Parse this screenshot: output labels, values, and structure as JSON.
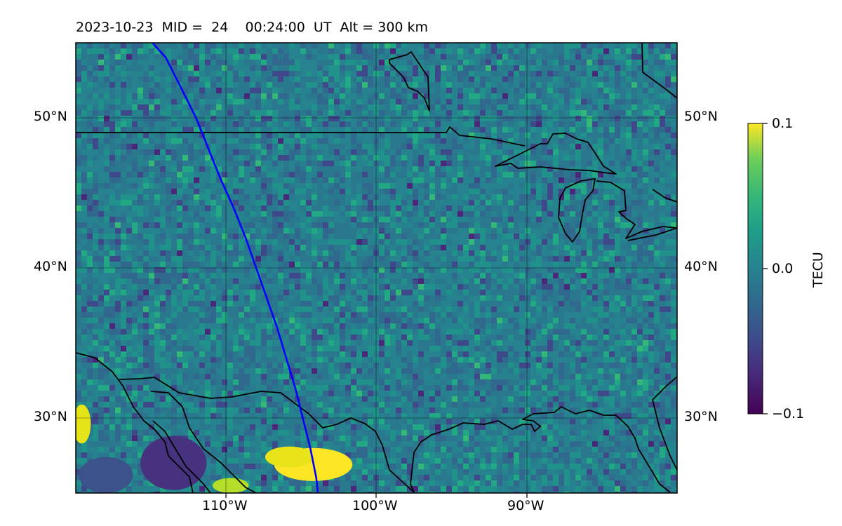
{
  "title": "2023-10-23  MID =  24    00:24:00  UT  Alt = 300 km",
  "map": {
    "lon_range": [
      -120,
      -80
    ],
    "lat_range": [
      25,
      55
    ],
    "x_ticks": [
      {
        "lon": -110,
        "label": "110°W"
      },
      {
        "lon": -100,
        "label": "100°W"
      },
      {
        "lon": -90,
        "label": "90°W"
      }
    ],
    "y_ticks": [
      {
        "lat": 50,
        "label": "50°N"
      },
      {
        "lat": 40,
        "label": "40°N"
      },
      {
        "lat": 30,
        "label": "30°N"
      }
    ],
    "grid": true,
    "colormap": "viridis",
    "satellite_track": {
      "color": "#0000ff",
      "points": [
        [
          -114.9,
          55.0
        ],
        [
          -114.0,
          54.0
        ],
        [
          -113.0,
          52.0
        ],
        [
          -112.0,
          50.0
        ],
        [
          -111.2,
          48.0
        ],
        [
          -110.4,
          46.0
        ],
        [
          -109.5,
          44.0
        ],
        [
          -108.7,
          42.0
        ],
        [
          -108.0,
          40.0
        ],
        [
          -107.3,
          38.0
        ],
        [
          -106.6,
          36.0
        ],
        [
          -106.0,
          34.0
        ],
        [
          -105.4,
          32.0
        ],
        [
          -104.9,
          30.0
        ],
        [
          -104.4,
          28.0
        ],
        [
          -104.0,
          26.0
        ],
        [
          -103.9,
          25.0
        ]
      ]
    },
    "enhancements": [
      {
        "lon": -104.2,
        "lat": 26.9,
        "rx": 2.6,
        "ry": 1.1,
        "color": "#fde725"
      },
      {
        "lon": -105.8,
        "lat": 27.4,
        "rx": 1.6,
        "ry": 0.7,
        "color": "#e8e419"
      },
      {
        "lon": -119.6,
        "lat": 29.6,
        "rx": 0.6,
        "ry": 1.3,
        "color": "#e5e419"
      },
      {
        "lon": -113.5,
        "lat": 27.0,
        "rx": 2.2,
        "ry": 1.8,
        "color": "#46327e"
      },
      {
        "lon": -109.7,
        "lat": 25.5,
        "rx": 1.2,
        "ry": 0.5,
        "color": "#b5de2b"
      },
      {
        "lon": -118.0,
        "lat": 26.2,
        "rx": 1.8,
        "ry": 1.2,
        "color": "#3b528b"
      }
    ]
  },
  "colorbar": {
    "label": "TECU",
    "range": [
      -0.1,
      0.1
    ],
    "ticks": [
      {
        "value": 0.1,
        "label": "0.1"
      },
      {
        "value": 0.0,
        "label": "0.0"
      },
      {
        "value": -0.1,
        "label": "−0.1"
      }
    ]
  }
}
